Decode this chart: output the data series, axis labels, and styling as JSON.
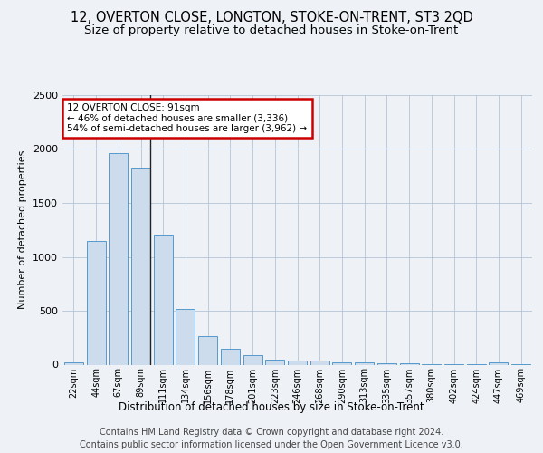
{
  "title": "12, OVERTON CLOSE, LONGTON, STOKE-ON-TRENT, ST3 2QD",
  "subtitle": "Size of property relative to detached houses in Stoke-on-Trent",
  "xlabel": "Distribution of detached houses by size in Stoke-on-Trent",
  "ylabel": "Number of detached properties",
  "categories": [
    "22sqm",
    "44sqm",
    "67sqm",
    "89sqm",
    "111sqm",
    "134sqm",
    "156sqm",
    "178sqm",
    "201sqm",
    "223sqm",
    "246sqm",
    "268sqm",
    "290sqm",
    "313sqm",
    "335sqm",
    "357sqm",
    "380sqm",
    "402sqm",
    "424sqm",
    "447sqm",
    "469sqm"
  ],
  "values": [
    25,
    1150,
    1960,
    1830,
    1210,
    520,
    265,
    148,
    85,
    45,
    40,
    35,
    20,
    20,
    15,
    10,
    5,
    5,
    5,
    20,
    5
  ],
  "bar_color": "#ccdcec",
  "bar_edge_color": "#5599cc",
  "annotation_box_text": "12 OVERTON CLOSE: 91sqm\n← 46% of detached houses are smaller (3,336)\n54% of semi-detached houses are larger (3,962) →",
  "vline_x_index": 3,
  "vline_color": "#222222",
  "annotation_box_color": "#ffffff",
  "annotation_box_edge_color": "#cc0000",
  "footer_text": "Contains HM Land Registry data © Crown copyright and database right 2024.\nContains public sector information licensed under the Open Government Licence v3.0.",
  "bg_color": "#eef2f7",
  "plot_bg_color": "#eef2f7",
  "ylim": [
    0,
    2500
  ],
  "title_fontsize": 10.5,
  "subtitle_fontsize": 9.5,
  "footer_fontsize": 7
}
